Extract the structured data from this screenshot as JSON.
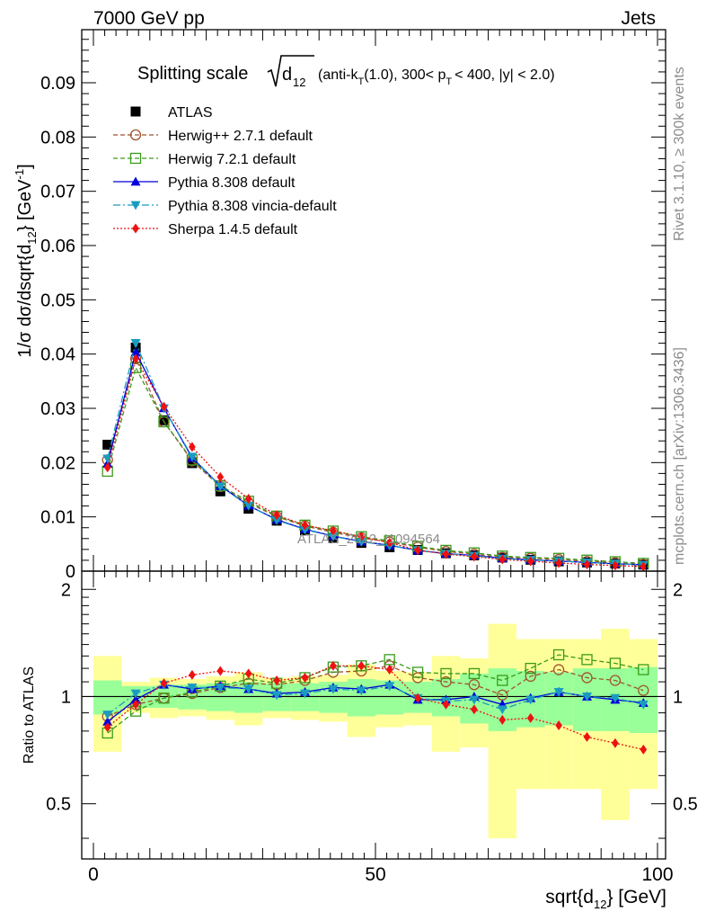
{
  "header": {
    "left": "7000 GeV pp",
    "right": "Jets"
  },
  "side_labels": {
    "rivet": "Rivet 3.1.10, ≥ 300k events",
    "mcplots": "mcplots.cern.ch [arXiv:1306.3436]"
  },
  "chart_data": {
    "type": "line",
    "title": "Splitting scale √d₁₂ (anti-k_T(1.0), 300< p_T < 400, |y| < 2.0)",
    "title_parts": {
      "main": "Splitting scale",
      "sub": "12",
      "rest": "(anti-k",
      "kt_sub": "T",
      "rest2": "(1.0), 300< p",
      "pt_sub": "T",
      "rest3": "< 400, |y| < 2.0)",
      "d": "d"
    },
    "xlabel": "sqrt{d₁₂} [GeV]",
    "xlabel_parts": {
      "a": "sqrt{d",
      "sub": "12",
      "b": "} [GeV]"
    },
    "ylabel": "1/σ dσ/dsqrt{d₁₂} [GeV⁻¹]",
    "ylabel_parts": {
      "a": "1/σ dσ/dsqrt{d",
      "sub": "12",
      "b": "} [GeV",
      "sup": "-1",
      "c": "]"
    },
    "ratio_ylabel": "Ratio to ATLAS",
    "watermark": "ATLAS_2012_I1094564",
    "xlim": [
      -2,
      102
    ],
    "ylim": [
      0,
      0.1
    ],
    "ratio_ylim": [
      0.35,
      2.25
    ],
    "x_ticks": [
      "0",
      "50",
      "100"
    ],
    "y_ticks": [
      "0",
      "0.01",
      "0.02",
      "0.03",
      "0.04",
      "0.05",
      "0.06",
      "0.07",
      "0.08",
      "0.09"
    ],
    "ratio_ticks": [
      "0.5",
      "1",
      "2"
    ],
    "x": [
      2.5,
      7.5,
      12.5,
      17.5,
      22.5,
      27.5,
      32.5,
      37.5,
      42.5,
      47.5,
      52.5,
      57.5,
      62.5,
      67.5,
      72.5,
      77.5,
      82.5,
      87.5,
      92.5,
      97.5
    ],
    "data": {
      "name": "ATLAS",
      "values": [
        0.0233,
        0.0412,
        0.0278,
        0.0199,
        0.0147,
        0.0115,
        0.0093,
        0.0075,
        0.0061,
        0.0052,
        0.0044,
        0.0039,
        0.0033,
        0.0029,
        0.0025,
        0.0021,
        0.0018,
        0.0016,
        0.0014,
        0.0012
      ]
    },
    "band_inner": [
      0.11,
      0.07,
      0.07,
      0.08,
      0.09,
      0.1,
      0.09,
      0.09,
      0.1,
      0.12,
      0.11,
      0.1,
      0.12,
      0.16,
      0.2,
      0.18,
      0.17,
      0.2,
      0.2,
      0.21
    ],
    "band_outer": [
      0.3,
      0.1,
      0.13,
      0.12,
      0.14,
      0.17,
      0.13,
      0.14,
      0.15,
      0.23,
      0.18,
      0.17,
      0.3,
      0.28,
      0.6,
      0.45,
      0.45,
      0.45,
      0.55,
      0.45
    ],
    "series": [
      {
        "name": "Herwig++ 2.7.1 default",
        "color": "#a0522d",
        "marker": "circle-open",
        "dash": "5,3",
        "ratio": [
          0.88,
          0.95,
          0.99,
          1.02,
          1.06,
          1.09,
          1.08,
          1.11,
          1.17,
          1.18,
          1.22,
          1.13,
          1.1,
          1.08,
          1.01,
          1.14,
          1.19,
          1.13,
          1.11,
          1.04
        ]
      },
      {
        "name": "Herwig 7.2.1 default",
        "color": "#3a9a1a",
        "marker": "square-open",
        "dash": "5,3",
        "ratio": [
          0.79,
          0.91,
          0.99,
          1.03,
          1.07,
          1.12,
          1.09,
          1.13,
          1.21,
          1.22,
          1.27,
          1.17,
          1.16,
          1.16,
          1.11,
          1.2,
          1.31,
          1.27,
          1.24,
          1.19
        ]
      },
      {
        "name": "Pythia 8.308 default",
        "color": "#0000dd",
        "marker": "triangle-up",
        "dash": "",
        "ratio": [
          0.85,
          0.98,
          1.08,
          1.05,
          1.07,
          1.05,
          1.02,
          1.03,
          1.06,
          1.05,
          1.08,
          0.98,
          0.98,
          1.0,
          0.95,
          0.99,
          1.03,
          1.0,
          0.98,
          0.96
        ]
      },
      {
        "name": "Pythia 8.308 vincia-default",
        "color": "#1a9cc0",
        "marker": "triangle-down",
        "dash": "8,3,2,3",
        "ratio": [
          0.89,
          1.02,
          1.08,
          1.06,
          1.06,
          1.05,
          1.01,
          1.02,
          1.05,
          1.04,
          1.07,
          0.99,
          0.97,
          0.98,
          0.92,
          0.98,
          1.03,
          1.0,
          0.99,
          0.95
        ]
      },
      {
        "name": "Sherpa 1.4.5 default",
        "color": "#ee1111",
        "marker": "diamond",
        "dash": "2,2",
        "ratio": [
          0.82,
          0.95,
          1.09,
          1.15,
          1.18,
          1.16,
          1.11,
          1.13,
          1.22,
          1.22,
          1.19,
          0.99,
          0.95,
          0.92,
          0.86,
          0.87,
          0.83,
          0.77,
          0.74,
          0.71
        ]
      }
    ]
  }
}
